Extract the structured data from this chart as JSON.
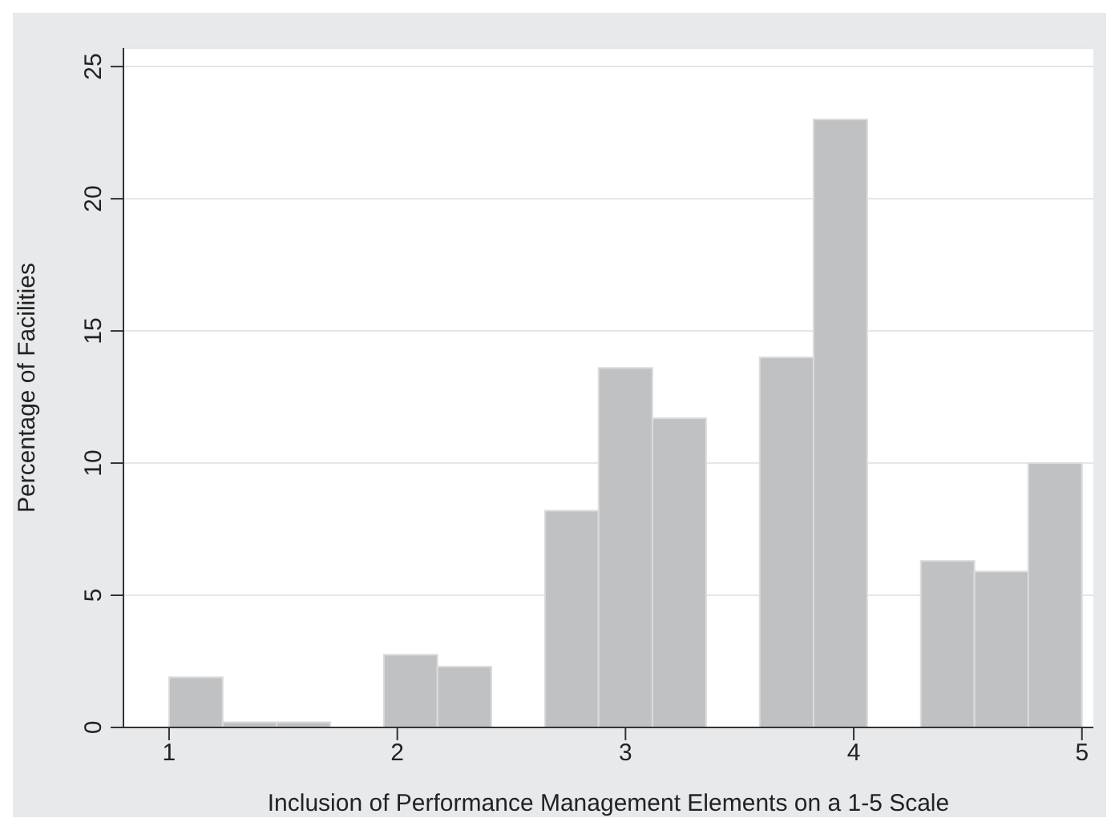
{
  "chart_data": {
    "type": "histogram",
    "xlabel": "Inclusion of Performance Management Elements on a 1-5 Scale",
    "ylabel": "Percentage of Facilities",
    "bins": [
      1,
      1.235,
      1.471,
      1.706,
      1.941,
      2.176,
      2.412,
      2.647,
      2.882,
      3.118,
      3.353,
      3.588,
      3.824,
      4.059,
      4.294,
      4.529,
      4.765,
      5
    ],
    "values": [
      1.9,
      0.2,
      0.2,
      0,
      2.75,
      2.3,
      0,
      8.2,
      13.6,
      11.7,
      0,
      14.0,
      23.0,
      0,
      6.3,
      5.9,
      10.0
    ],
    "color": "#c0c1c3",
    "xlim": [
      0.8,
      5.05
    ],
    "xticks": [
      1,
      2,
      3,
      4,
      5
    ],
    "ylim": [
      0,
      25.7
    ],
    "yticks": [
      0,
      5,
      10,
      15,
      20,
      25
    ],
    "grid": "y"
  }
}
